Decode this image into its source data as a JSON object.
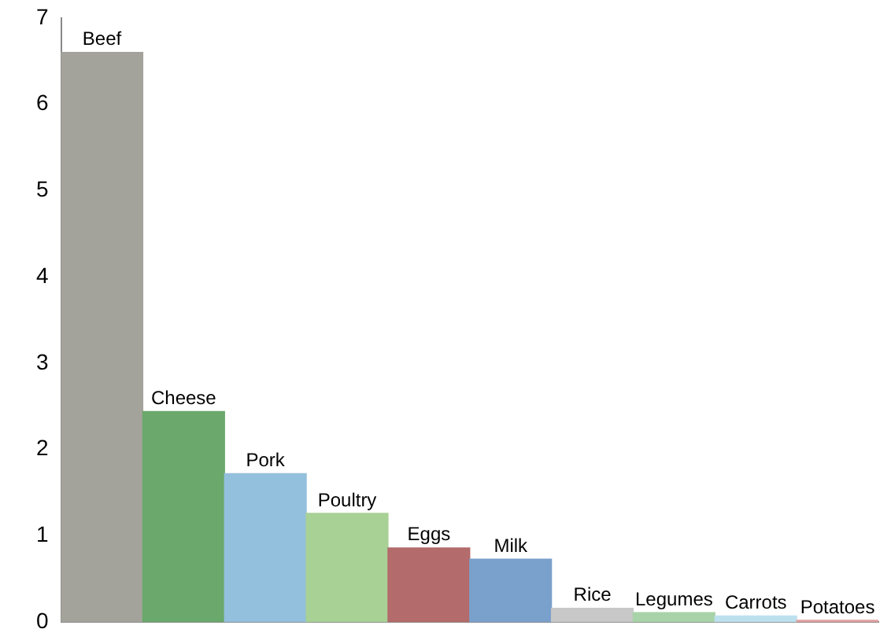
{
  "chart_data": {
    "type": "bar",
    "categories": [
      "Beef",
      "Cheese",
      "Pork",
      "Poultry",
      "Eggs",
      "Milk",
      "Rice",
      "Legumes",
      "Carrots",
      "Potatoes"
    ],
    "values": [
      6.6,
      2.44,
      1.72,
      1.26,
      0.86,
      0.73,
      0.16,
      0.11,
      0.07,
      0.02
    ],
    "colors": [
      "#a3a39b",
      "#6aa86b",
      "#93c0dc",
      "#a8d196",
      "#b36b6b",
      "#7aa0cc",
      "#c8c8c8",
      "#a8d3a8",
      "#bde0ef",
      "#e0a0a0"
    ],
    "ylim": [
      0,
      7
    ],
    "yticks": [
      0,
      1,
      2,
      3,
      4,
      5,
      6,
      7
    ],
    "grid": false,
    "legend": false
  }
}
